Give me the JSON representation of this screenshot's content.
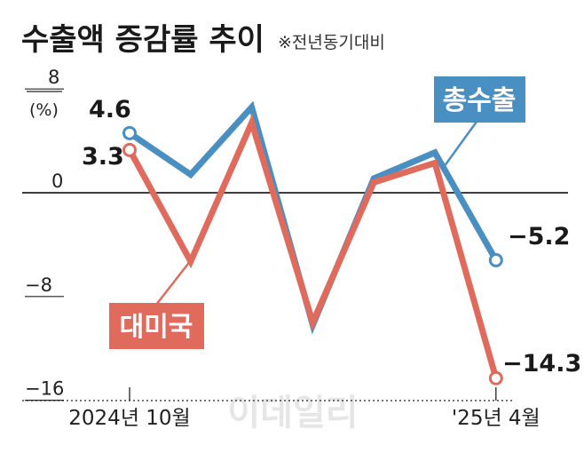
{
  "colors": {
    "total": "#4a8fc1",
    "us": "#e06b5d",
    "axis": "#222222",
    "watermark": "#e6e6e6"
  },
  "watermark": "이데일리",
  "chart_data": {
    "type": "line",
    "title": "수출액 증감률 추이",
    "subtitle": "※전년동기대비",
    "ylabel": "(%)",
    "ylim": [
      -16,
      8
    ],
    "yticks": [
      {
        "value": 8,
        "label": "8"
      },
      {
        "value": 0,
        "label": "0"
      },
      {
        "value": -8,
        "label": "−8"
      },
      {
        "value": -16,
        "label": "−16"
      }
    ],
    "x_labels": [
      {
        "index": 0,
        "label": "2024년 10월"
      },
      {
        "index": 6,
        "label": "'25년 4월"
      }
    ],
    "series": [
      {
        "name": "총수출",
        "values": [
          4.6,
          1.4,
          6.6,
          -10.2,
          1.1,
          3.1,
          -5.2
        ],
        "labels": [
          {
            "index": 0,
            "text": "4.6"
          },
          {
            "index": 6,
            "text": "−5.2"
          }
        ]
      },
      {
        "name": "대미국",
        "values": [
          3.3,
          -5.3,
          5.4,
          -10.0,
          0.8,
          2.3,
          -14.3
        ],
        "labels": [
          {
            "index": 0,
            "text": "3.3"
          },
          {
            "index": 6,
            "text": "−14.3"
          }
        ]
      }
    ]
  }
}
